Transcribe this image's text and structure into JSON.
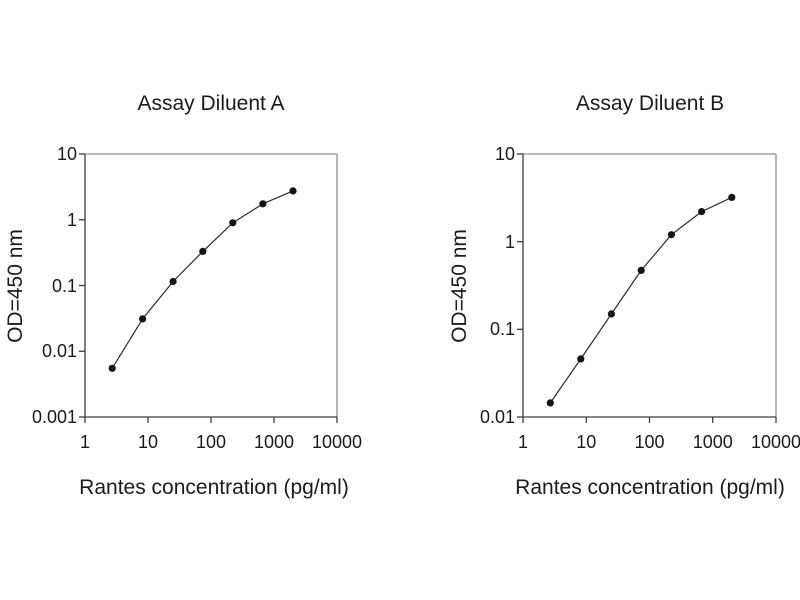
{
  "figure": {
    "background": "#ffffff",
    "text_color": "#1b1b1b",
    "axis_color": "#3c3c3c",
    "frame_color": "#8f8f8f",
    "line_color": "#2a2a2a",
    "marker_color": "#141414"
  },
  "chart_data": [
    {
      "type": "line",
      "title": "Assay Diluent A",
      "xlabel": "Rantes concentration (pg/ml)",
      "ylabel": "OD=450 nm",
      "xscale": "log",
      "yscale": "log",
      "xlim": [
        1,
        10000
      ],
      "ylim": [
        0.001,
        10
      ],
      "xtick_values": [
        1,
        10,
        100,
        1000,
        10000
      ],
      "xtick_labels": [
        "1",
        "10",
        "100",
        "1000",
        "10000"
      ],
      "ytick_values": [
        10,
        1,
        0.1,
        0.01,
        0.001
      ],
      "ytick_labels": [
        "10",
        "1",
        "0.1",
        "0.01",
        "0.001"
      ],
      "x": [
        2.7,
        8.2,
        25,
        74,
        222,
        667,
        2000
      ],
      "y": [
        0.0055,
        0.031,
        0.115,
        0.33,
        0.9,
        1.75,
        2.75
      ],
      "legend": null,
      "grid": false
    },
    {
      "type": "line",
      "title": "Assay Diluent B",
      "xlabel": "Rantes concentration (pg/ml)",
      "ylabel": "OD=450 nm",
      "xscale": "log",
      "yscale": "log",
      "xlim": [
        1,
        10000
      ],
      "ylim": [
        0.01,
        10
      ],
      "xtick_values": [
        1,
        10,
        100,
        1000,
        10000
      ],
      "xtick_labels": [
        "1",
        "10",
        "100",
        "1000",
        "10000"
      ],
      "ytick_values": [
        10,
        1,
        0.1,
        0.01
      ],
      "ytick_labels": [
        "10",
        "1",
        "0.1",
        "0.01"
      ],
      "x": [
        2.7,
        8.2,
        25,
        74,
        222,
        667,
        2000
      ],
      "y": [
        0.0145,
        0.046,
        0.15,
        0.47,
        1.2,
        2.2,
        3.2
      ],
      "legend": null,
      "grid": false
    }
  ]
}
